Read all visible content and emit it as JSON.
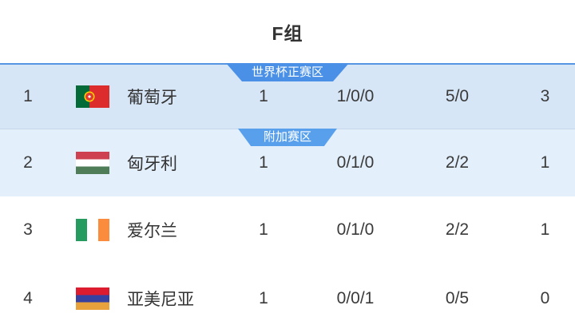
{
  "header": {
    "title": "F组"
  },
  "standings": {
    "rows": [
      {
        "rank": "1",
        "team": "葡萄牙",
        "flag": "portugal",
        "played": "1",
        "win_draw_loss": "1/0/0",
        "goals_for_against": "5/0",
        "points": "3",
        "zone_badge": "世界杯正赛区"
      },
      {
        "rank": "2",
        "team": "匈牙利",
        "flag": "hungary",
        "played": "1",
        "win_draw_loss": "0/1/0",
        "goals_for_against": "2/2",
        "points": "1",
        "zone_badge": "附加赛区"
      },
      {
        "rank": "3",
        "team": "爱尔兰",
        "flag": "ireland",
        "played": "1",
        "win_draw_loss": "0/1/0",
        "goals_for_against": "2/2",
        "points": "1"
      },
      {
        "rank": "4",
        "team": "亚美尼亚",
        "flag": "armenia",
        "played": "1",
        "win_draw_loss": "0/0/1",
        "goals_for_against": "0/5",
        "points": "0"
      }
    ]
  },
  "colors": {
    "zone1_row_bg": "#d7e6f7",
    "zone2_row_bg": "#e3effb",
    "zone1_badge_bg": "#4a90e6",
    "zone2_badge_bg": "#58a0ec",
    "zone1_row_border": "#5795e2",
    "zone2_row_border": "#c6d7eb",
    "text_primary": "#333333"
  }
}
